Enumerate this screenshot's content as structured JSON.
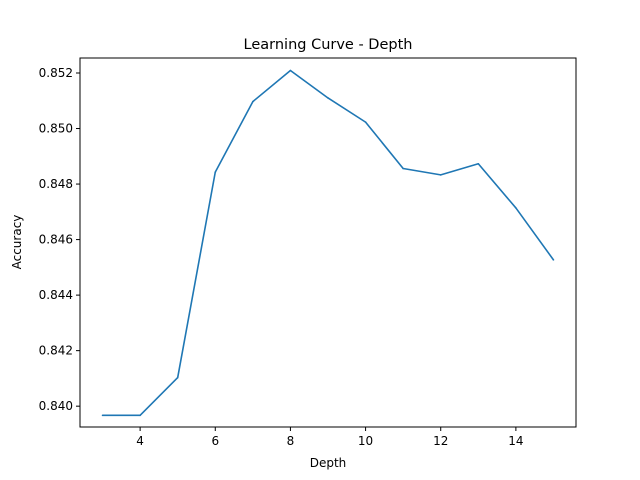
{
  "chart_data": {
    "type": "line",
    "title": "Learning Curve - Depth",
    "xlabel": "Depth",
    "ylabel": "Accuracy",
    "xlim": [
      2.4,
      15.6
    ],
    "ylim": [
      0.83925,
      0.85254
    ],
    "xticks": [
      4,
      6,
      8,
      10,
      12,
      14
    ],
    "yticks": [
      0.84,
      0.842,
      0.844,
      0.846,
      0.848,
      0.85,
      0.852
    ],
    "x": [
      3,
      4,
      5,
      6,
      7,
      8,
      9,
      10,
      11,
      12,
      13,
      14,
      15
    ],
    "series": [
      {
        "color": "#1f77b4",
        "values": [
          0.83967,
          0.83967,
          0.84103,
          0.84843,
          0.85097,
          0.85209,
          0.8511,
          0.85023,
          0.84856,
          0.84833,
          0.84873,
          0.84714,
          0.84527
        ]
      }
    ],
    "grid": false,
    "legend": "none"
  }
}
